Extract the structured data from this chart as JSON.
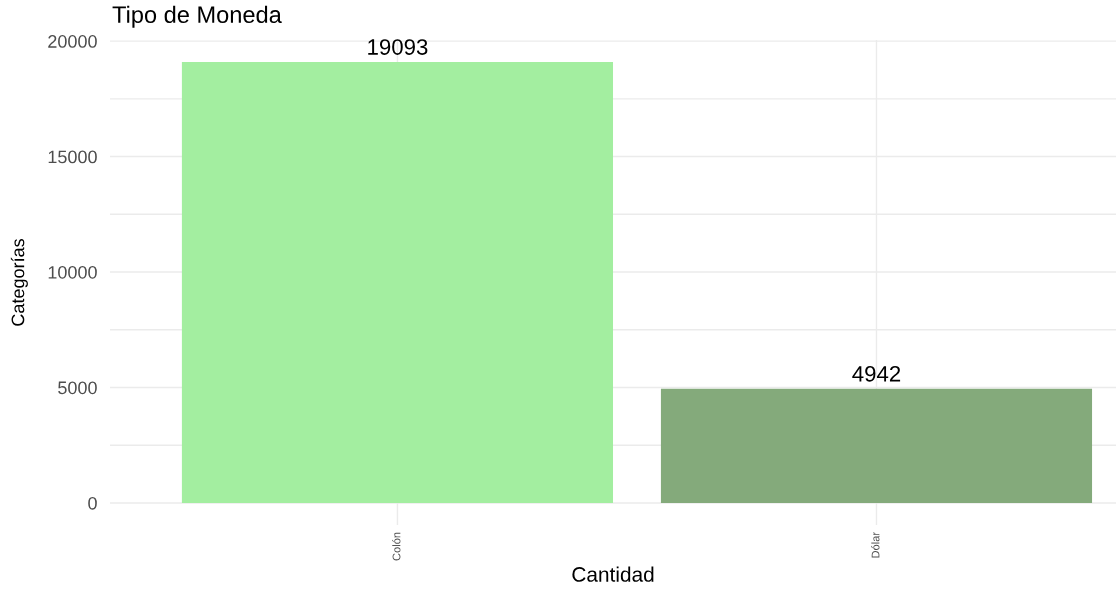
{
  "chart_data": {
    "type": "bar",
    "title": "Tipo de Moneda",
    "xlabel": "Cantidad",
    "ylabel": "Categorías",
    "categories": [
      "Colón",
      "Dólar"
    ],
    "values": [
      19093,
      4942
    ],
    "colors": [
      "#a3eea0",
      "#84aa7b"
    ],
    "ylim": [
      -955,
      20048
    ],
    "yticks": [
      0,
      {
        "value": 2500,
        "label": null
      },
      5000,
      {
        "value": 7500,
        "label": null
      },
      10000,
      {
        "value": 12500,
        "label": null
      },
      15000,
      {
        "value": 17500,
        "label": null
      },
      20000
    ],
    "grid": true,
    "data_labels": true
  }
}
